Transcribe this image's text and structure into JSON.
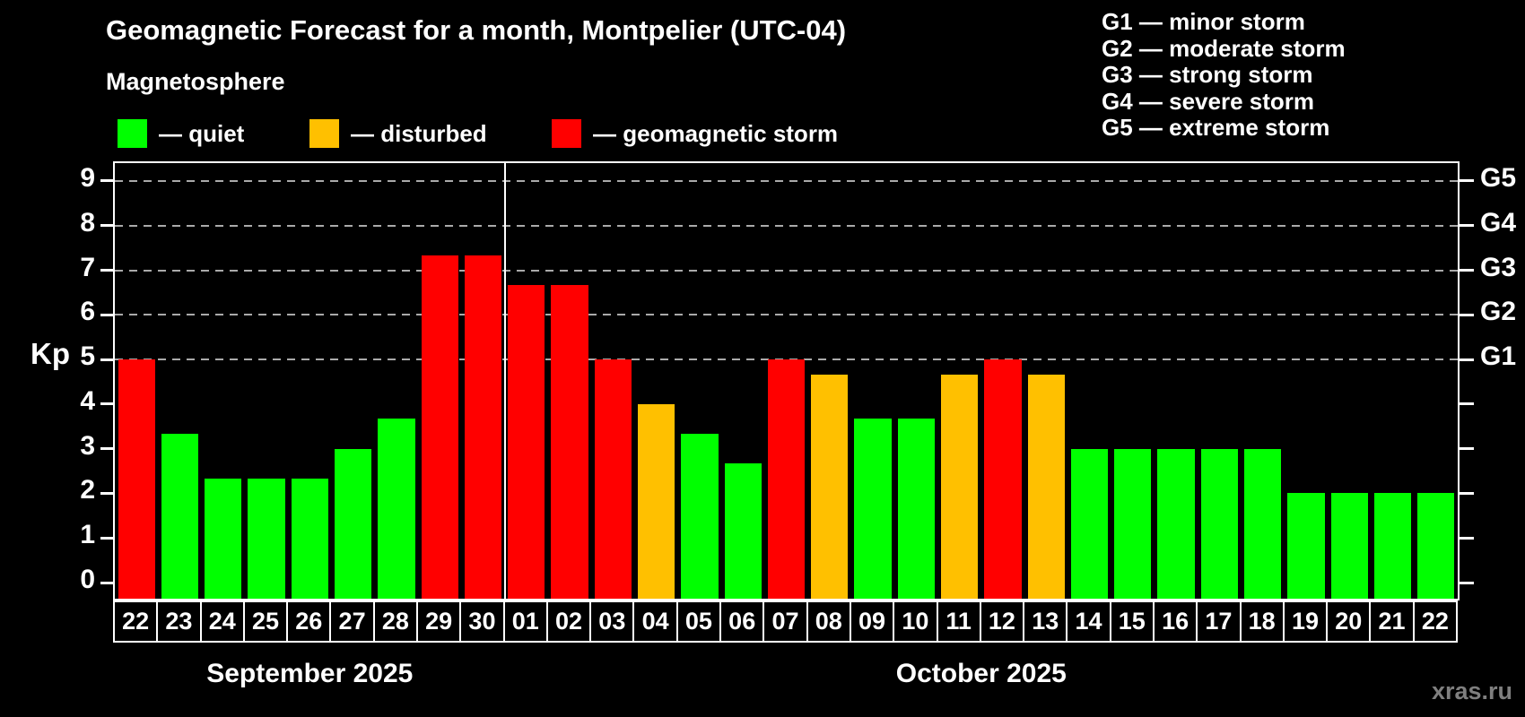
{
  "g_legend": {
    "lines": [
      "G1 — minor storm",
      "G2 — moderate storm",
      "G3 — strong storm",
      "G4 — severe storm",
      "G5 — extreme storm"
    ]
  },
  "legend": {
    "items": [
      {
        "status": "quiet",
        "label": "— quiet"
      },
      {
        "status": "disturbed",
        "label": "— disturbed"
      },
      {
        "status": "storm",
        "label": "— geomagnetic storm"
      }
    ]
  },
  "watermark": "xras.ru",
  "chart_data": {
    "type": "bar",
    "title": "Geomagnetic Forecast for a month, Montpelier (UTC-04)",
    "subtitle": "Magnetosphere",
    "ylabel": "Kp",
    "ylim": [
      -0.4,
      9.4
    ],
    "kp_ticks": [
      0,
      1,
      2,
      3,
      4,
      5,
      6,
      7,
      8,
      9
    ],
    "gridline_kp": [
      5,
      6,
      7,
      8,
      9
    ],
    "g_scale": [
      {
        "kp": 5,
        "label": "G1"
      },
      {
        "kp": 6,
        "label": "G2"
      },
      {
        "kp": 7,
        "label": "G3"
      },
      {
        "kp": 8,
        "label": "G4"
      },
      {
        "kp": 9,
        "label": "G5"
      }
    ],
    "status_colors": {
      "quiet": "#00ff00",
      "disturbed": "#ffc000",
      "storm": "#ff0000"
    },
    "legend_position": "top-left",
    "grid": "dashed-horizontal",
    "months": [
      {
        "label": "September 2025",
        "bars": [
          {
            "day": "22",
            "kp": 5.0,
            "status": "storm"
          },
          {
            "day": "23",
            "kp": 3.33,
            "status": "quiet"
          },
          {
            "day": "24",
            "kp": 2.33,
            "status": "quiet"
          },
          {
            "day": "25",
            "kp": 2.33,
            "status": "quiet"
          },
          {
            "day": "26",
            "kp": 2.33,
            "status": "quiet"
          },
          {
            "day": "27",
            "kp": 3.0,
            "status": "quiet"
          },
          {
            "day": "28",
            "kp": 3.67,
            "status": "quiet"
          },
          {
            "day": "29",
            "kp": 7.33,
            "status": "storm"
          },
          {
            "day": "30",
            "kp": 7.33,
            "status": "storm"
          }
        ]
      },
      {
        "label": "October 2025",
        "bars": [
          {
            "day": "01",
            "kp": 6.67,
            "status": "storm"
          },
          {
            "day": "02",
            "kp": 6.67,
            "status": "storm"
          },
          {
            "day": "03",
            "kp": 5.0,
            "status": "storm"
          },
          {
            "day": "04",
            "kp": 4.0,
            "status": "disturbed"
          },
          {
            "day": "05",
            "kp": 3.33,
            "status": "quiet"
          },
          {
            "day": "06",
            "kp": 2.67,
            "status": "quiet"
          },
          {
            "day": "07",
            "kp": 5.0,
            "status": "storm"
          },
          {
            "day": "08",
            "kp": 4.67,
            "status": "disturbed"
          },
          {
            "day": "09",
            "kp": 3.67,
            "status": "quiet"
          },
          {
            "day": "10",
            "kp": 3.67,
            "status": "quiet"
          },
          {
            "day": "11",
            "kp": 4.67,
            "status": "disturbed"
          },
          {
            "day": "12",
            "kp": 5.0,
            "status": "storm"
          },
          {
            "day": "13",
            "kp": 4.67,
            "status": "disturbed"
          },
          {
            "day": "14",
            "kp": 3.0,
            "status": "quiet"
          },
          {
            "day": "15",
            "kp": 3.0,
            "status": "quiet"
          },
          {
            "day": "16",
            "kp": 3.0,
            "status": "quiet"
          },
          {
            "day": "17",
            "kp": 3.0,
            "status": "quiet"
          },
          {
            "day": "18",
            "kp": 3.0,
            "status": "quiet"
          },
          {
            "day": "19",
            "kp": 2.0,
            "status": "quiet"
          },
          {
            "day": "20",
            "kp": 2.0,
            "status": "quiet"
          },
          {
            "day": "21",
            "kp": 2.0,
            "status": "quiet"
          },
          {
            "day": "22",
            "kp": 2.0,
            "status": "quiet"
          }
        ]
      }
    ]
  }
}
